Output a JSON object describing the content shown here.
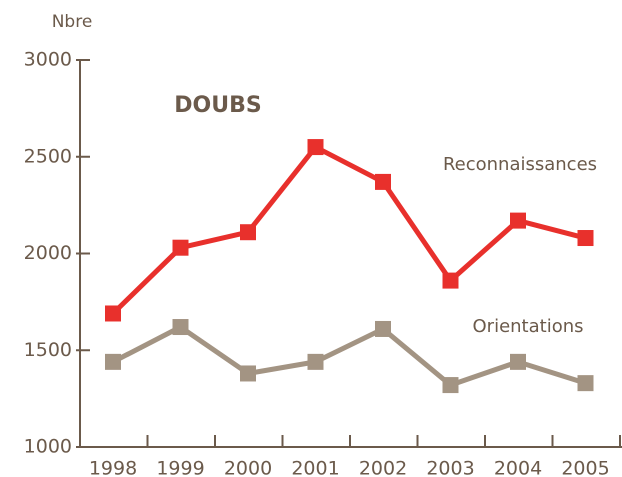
{
  "chart_data": {
    "type": "line",
    "title": "DOUBS",
    "y_label": "Nbre",
    "categories": [
      "1998",
      "1999",
      "2000",
      "2001",
      "2002",
      "2003",
      "2004",
      "2005"
    ],
    "series": [
      {
        "name": "Reconnaissances",
        "color": "#e8302c",
        "values": [
          1690,
          2030,
          2110,
          2550,
          2370,
          1860,
          2170,
          2080
        ]
      },
      {
        "name": "Orientations",
        "color": "#a39483",
        "values": [
          1440,
          1620,
          1380,
          1440,
          1610,
          1320,
          1440,
          1330
        ]
      }
    ],
    "ylim": [
      1000,
      3000
    ],
    "yticks": [
      1000,
      1500,
      2000,
      2500,
      3000
    ],
    "grid": false
  }
}
